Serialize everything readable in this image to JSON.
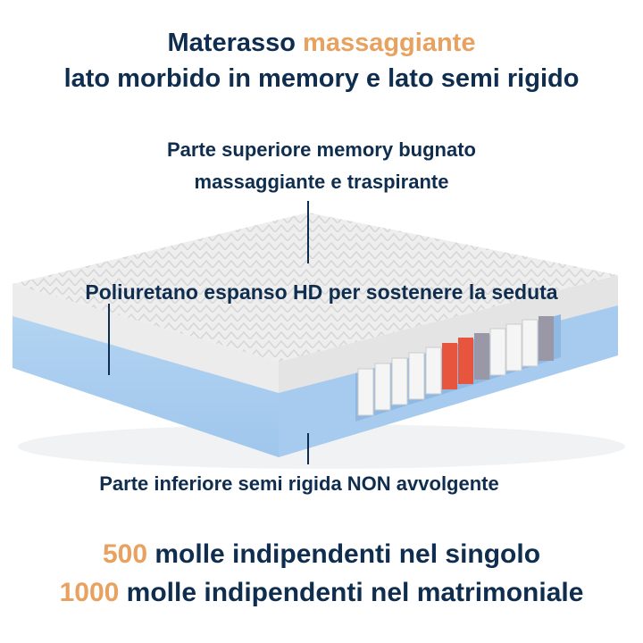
{
  "title": {
    "line1_prefix": "Materasso",
    "line1_accent": "massaggiante",
    "line2": "lato morbido in memory e lato semi rigido"
  },
  "labels": {
    "top_line1": "Parte superiore memory bugnato",
    "top_line2": "massaggiante e traspirante",
    "middle": "Poliuretano espanso HD per sostenere la seduta",
    "bottom": "Parte inferiore semi rigida NON avvolgente"
  },
  "footer": {
    "line1_number": "500",
    "line1_text": "molle indipendenti nel singolo",
    "line2_number": "1000",
    "line2_text": "molle indipendenti nel matrimoniale"
  },
  "colors": {
    "navy": "#0f2d4f",
    "accent": "#e8a15e",
    "foam_blue": "#a9cdef",
    "memory_white": "#ececec",
    "spring_red": "#e8553f",
    "spring_grey": "#9a98a6"
  }
}
